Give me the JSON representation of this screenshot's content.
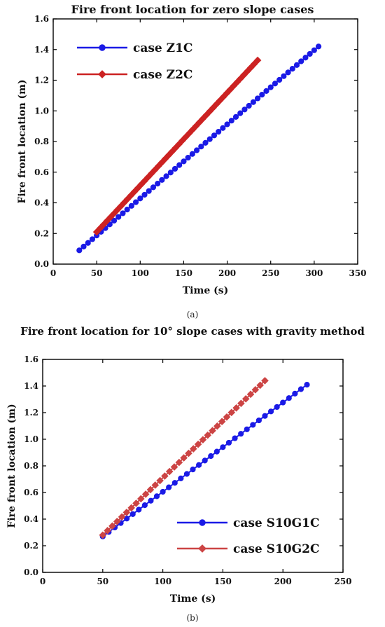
{
  "chart_data": [
    {
      "type": "line",
      "title": "Fire front location for zero slope cases",
      "caption": "(a)",
      "xlabel": "Time (s)",
      "ylabel": "Fire front location (m)",
      "xlim": [
        0,
        350
      ],
      "ylim": [
        0.0,
        1.6
      ],
      "xticks": [
        "0",
        "50",
        "100",
        "150",
        "200",
        "250",
        "300",
        "350"
      ],
      "yticks": [
        "0.0",
        "0.2",
        "0.4",
        "0.6",
        "0.8",
        "1.0",
        "1.2",
        "1.4",
        "1.6"
      ],
      "grid": false,
      "legend_position": "top-left",
      "series": [
        {
          "name": "case Z1C",
          "color": "#1a1ae6",
          "marker": "circle",
          "x_start": 30,
          "x_end": 305,
          "y_start": 0.09,
          "y_end": 1.42,
          "n_points": 56
        },
        {
          "name": "case Z2C",
          "color": "#cc2222",
          "marker": "diamond",
          "x_start": 50,
          "x_end": 235,
          "y_start": 0.21,
          "y_end": 1.33,
          "n_points": 48
        }
      ]
    },
    {
      "type": "line",
      "title": "Fire front location for 10° slope cases with gravity method",
      "caption": "(b)",
      "xlabel": "Time (s)",
      "ylabel": "Fire front location (m)",
      "xlim": [
        0,
        250
      ],
      "ylim": [
        0.0,
        1.6
      ],
      "xticks": [
        "0",
        "50",
        "100",
        "150",
        "200",
        "250"
      ],
      "yticks": [
        "0.0",
        "0.2",
        "0.4",
        "0.6",
        "0.8",
        "1.0",
        "1.2",
        "1.4",
        "1.6"
      ],
      "grid": false,
      "legend_position": "bottom-right",
      "series": [
        {
          "name": "case S10G1C",
          "color": "#1a1ae6",
          "marker": "circle",
          "x_start": 50,
          "x_end": 220,
          "y_start": 0.27,
          "y_end": 1.41,
          "n_points": 35
        },
        {
          "name": "case S10G2C",
          "color": "#cc4444",
          "marker": "diamond",
          "x_start": 50,
          "x_end": 185,
          "y_start": 0.28,
          "y_end": 1.44,
          "n_points": 35
        }
      ]
    }
  ]
}
